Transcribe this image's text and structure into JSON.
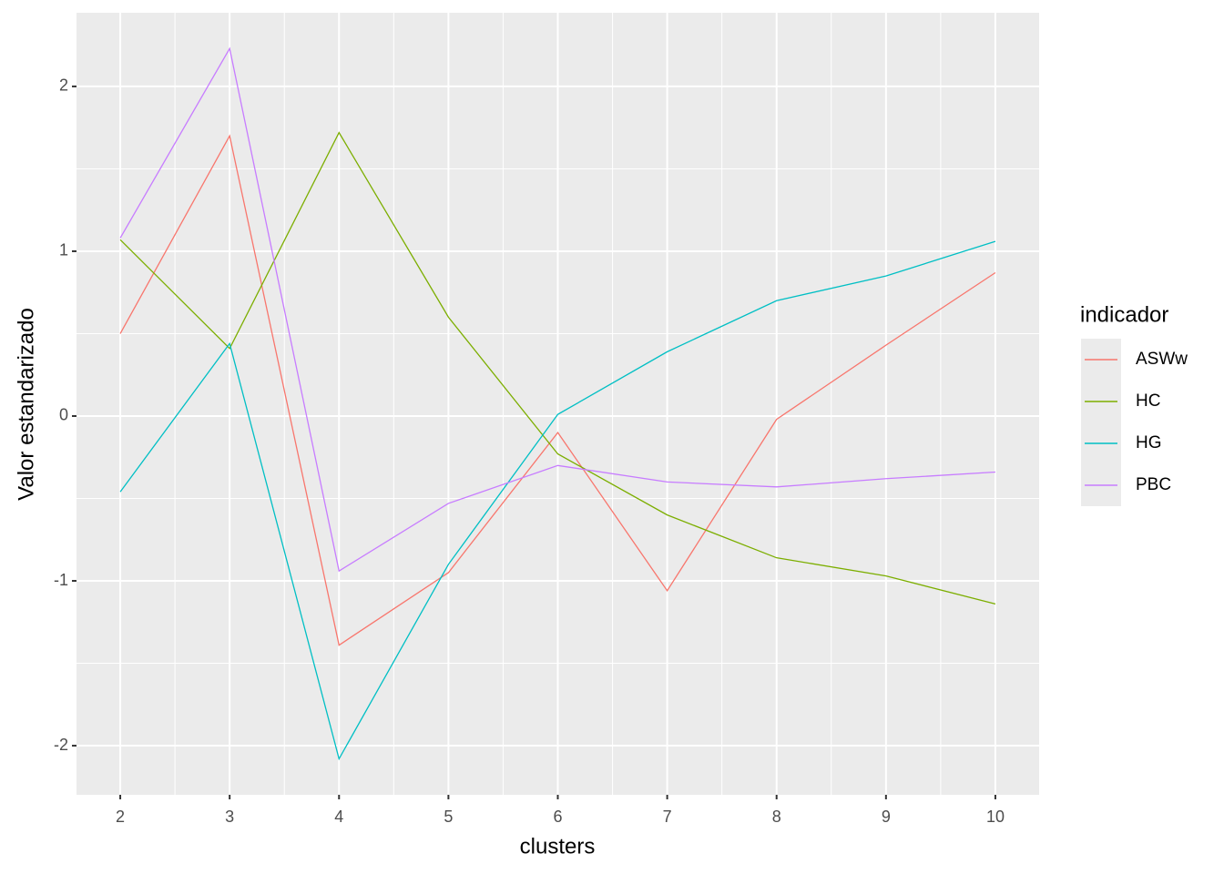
{
  "chart_data": {
    "type": "line",
    "x_label": "clusters",
    "y_label": "Valor estandarizado",
    "legend_title": "indicador",
    "x": [
      2,
      3,
      4,
      5,
      6,
      7,
      8,
      9,
      10
    ],
    "series": [
      {
        "name": "ASWw",
        "color": "#F8766D",
        "values": [
          0.5,
          1.7,
          -1.39,
          -0.95,
          -0.1,
          -1.06,
          -0.02,
          0.43,
          0.87
        ]
      },
      {
        "name": "HC",
        "color": "#7CAE00",
        "values": [
          1.07,
          0.41,
          1.72,
          0.6,
          -0.23,
          -0.6,
          -0.86,
          -0.97,
          -1.14
        ]
      },
      {
        "name": "HG",
        "color": "#00BFC4",
        "values": [
          -0.46,
          0.44,
          -2.08,
          -0.9,
          0.01,
          0.39,
          0.7,
          0.85,
          1.06
        ]
      },
      {
        "name": "PBC",
        "color": "#C77CFF",
        "values": [
          1.08,
          2.23,
          -0.94,
          -0.53,
          -0.3,
          -0.4,
          -0.43,
          -0.38,
          -0.34
        ]
      }
    ],
    "xlim": [
      1.6,
      10.4
    ],
    "ylim": [
      -2.298,
      2.447
    ],
    "xticks": [
      2,
      3,
      4,
      5,
      6,
      7,
      8,
      9,
      10
    ],
    "yticks": [
      -2,
      -1,
      0,
      1,
      2
    ],
    "grid": true,
    "legend": "right"
  }
}
